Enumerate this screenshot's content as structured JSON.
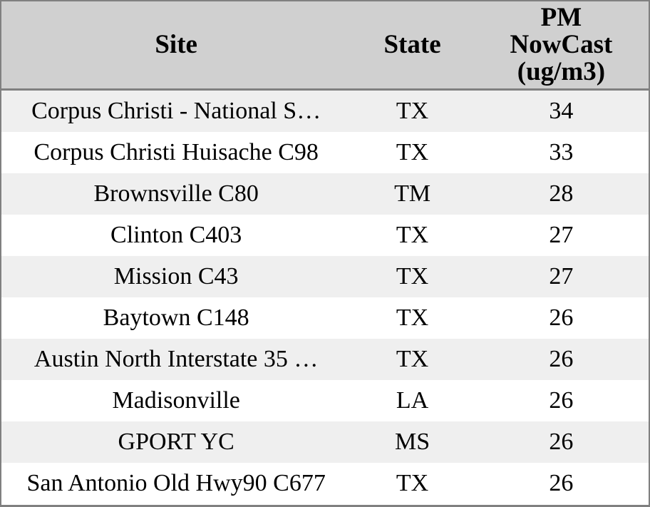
{
  "colors": {
    "header_bg": "#d0d0d0",
    "row_alt_bg": "#efefef",
    "row_bg": "#ffffff",
    "border": "#808080",
    "text": "#000000"
  },
  "table": {
    "columns": [
      {
        "key": "site",
        "label": "Site"
      },
      {
        "key": "state",
        "label": "State"
      },
      {
        "key": "pm_nowcast",
        "label": "PM\nNowCast\n(ug/m3)"
      }
    ],
    "rows": [
      {
        "site": "Corpus Christi - National S…",
        "state": "TX",
        "pm_nowcast": "34"
      },
      {
        "site": "Corpus Christi Huisache C98",
        "state": "TX",
        "pm_nowcast": "33"
      },
      {
        "site": "Brownsville C80",
        "state": "TM",
        "pm_nowcast": "28"
      },
      {
        "site": "Clinton C403",
        "state": "TX",
        "pm_nowcast": "27"
      },
      {
        "site": "Mission C43",
        "state": "TX",
        "pm_nowcast": "27"
      },
      {
        "site": "Baytown C148",
        "state": "TX",
        "pm_nowcast": "26"
      },
      {
        "site": "Austin North Interstate 35 …",
        "state": "TX",
        "pm_nowcast": "26"
      },
      {
        "site": "Madisonville",
        "state": "LA",
        "pm_nowcast": "26"
      },
      {
        "site": "GPORT YC",
        "state": "MS",
        "pm_nowcast": "26"
      },
      {
        "site": "San Antonio Old Hwy90 C677",
        "state": "TX",
        "pm_nowcast": "26"
      }
    ]
  }
}
